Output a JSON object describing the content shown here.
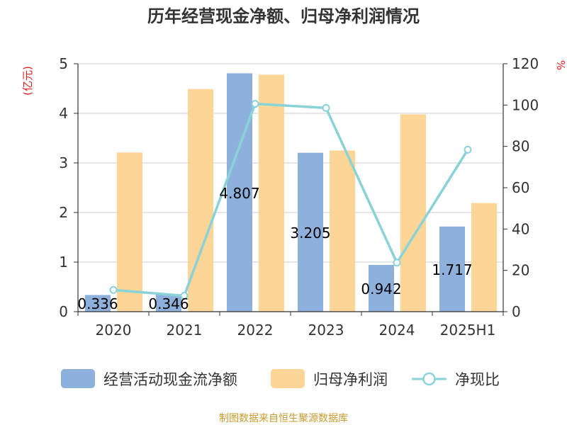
{
  "colors": {
    "cash_flow": "#8eb0dc",
    "net_profit": "#fdd596",
    "ratio_line": "#89d2d8",
    "unit_text": "#e02020",
    "source_text": "#c89a2e"
  },
  "chart_data": {
    "type": "bar",
    "title": "历年经营现金净额、归母净利润情况",
    "categories": [
      "2020",
      "2021",
      "2022",
      "2023",
      "2024",
      "2025H1"
    ],
    "left_axis": {
      "unit": "(亿元)",
      "ylim": [
        0,
        5
      ],
      "ticks": [
        0,
        1,
        2,
        3,
        4,
        5
      ]
    },
    "right_axis": {
      "unit": "%",
      "ylim": [
        0,
        120
      ],
      "ticks": [
        0,
        20,
        40,
        60,
        80,
        100,
        120
      ]
    },
    "grid": true,
    "legend_position": "bottom",
    "series": [
      {
        "name": "经营活动现金流净额",
        "type": "bar",
        "axis": "left",
        "values": [
          0.336,
          0.346,
          4.807,
          3.205,
          0.942,
          1.717
        ],
        "labels": [
          "0.336",
          "0.346",
          "4.807",
          "3.205",
          "0.942",
          "1.717"
        ]
      },
      {
        "name": "归母净利润",
        "type": "bar",
        "axis": "left",
        "values": [
          3.21,
          4.49,
          4.78,
          3.25,
          3.98,
          2.19
        ]
      },
      {
        "name": "净现比",
        "type": "line",
        "axis": "right",
        "values": [
          10.5,
          7.7,
          100.6,
          98.6,
          23.7,
          78.4
        ]
      }
    ]
  },
  "source": "制图数据来自恒生聚源数据库"
}
